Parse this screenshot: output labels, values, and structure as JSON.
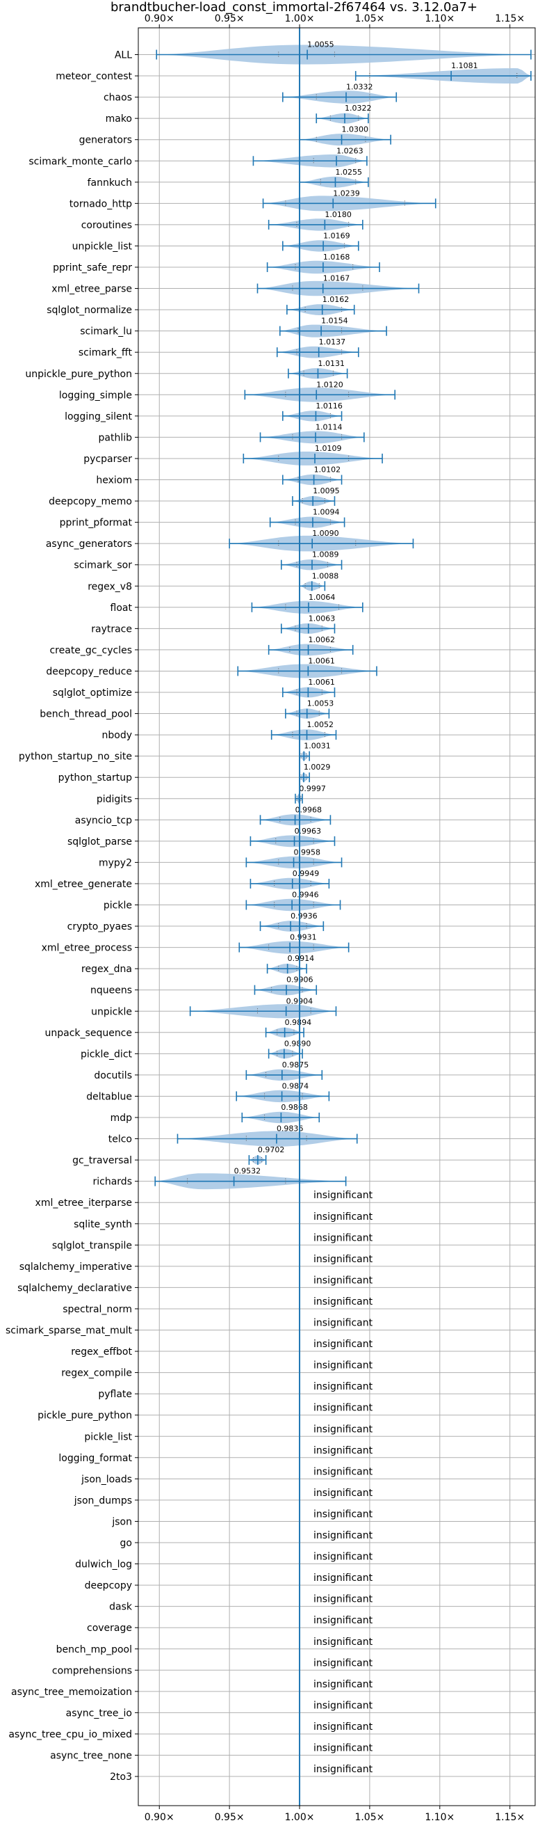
{
  "chart_data": {
    "type": "violin",
    "title": "brandtbucher-load_const_immortal-2f67464 vs. 3.12.0a7+",
    "xlim": [
      0.885,
      1.168
    ],
    "x_ticks": [
      0.9,
      0.95,
      1.0,
      1.05,
      1.1,
      1.15
    ],
    "x_tick_labels": [
      "0.90×",
      "0.95×",
      "1.00×",
      "1.05×",
      "1.10×",
      "1.15×"
    ],
    "reference_line": 1.0,
    "grid": true,
    "insignificant_label": "insignificant",
    "series": [
      {
        "name": "ALL",
        "value": 1.0055,
        "label": "1.0055",
        "min": 0.898,
        "max": 1.165,
        "q1": 0.985,
        "q3": 1.025,
        "peak": 0.9995
      },
      {
        "name": "meteor_contest",
        "value": 1.1081,
        "label": "1.1081",
        "min": 1.04,
        "max": 1.165,
        "q1": 1.05,
        "q3": 1.155,
        "peak": 1.155
      },
      {
        "name": "chaos",
        "value": 1.0332,
        "label": "1.0332",
        "min": 0.988,
        "max": 1.069,
        "q1": 1.012,
        "q3": 1.05,
        "peak": 1.035
      },
      {
        "name": "mako",
        "value": 1.0322,
        "label": "1.0322",
        "min": 1.012,
        "max": 1.049,
        "q1": 1.022,
        "q3": 1.042,
        "peak": 1.033
      },
      {
        "name": "generators",
        "value": 1.03,
        "label": "1.0300",
        "min": 1.0,
        "max": 1.065,
        "q1": 1.012,
        "q3": 1.047,
        "peak": 1.03
      },
      {
        "name": "scimark_monte_carlo",
        "value": 1.0263,
        "label": "1.0263",
        "min": 0.967,
        "max": 1.048,
        "q1": 1.01,
        "q3": 1.04,
        "peak": 1.025
      },
      {
        "name": "fannkuch",
        "value": 1.0255,
        "label": "1.0255",
        "min": 1.0,
        "max": 1.049,
        "q1": 1.015,
        "q3": 1.04,
        "peak": 1.025
      },
      {
        "name": "tornado_http",
        "value": 1.0239,
        "label": "1.0239",
        "min": 0.974,
        "max": 1.097,
        "q1": 0.99,
        "q3": 1.075,
        "peak": 1.015
      },
      {
        "name": "coroutines",
        "value": 1.018,
        "label": "1.0180",
        "min": 0.978,
        "max": 1.045,
        "q1": 0.998,
        "q3": 1.035,
        "peak": 1.015
      },
      {
        "name": "unpickle_list",
        "value": 1.0169,
        "label": "1.0169",
        "min": 0.988,
        "max": 1.042,
        "q1": 1.0,
        "q3": 1.032,
        "peak": 1.015
      },
      {
        "name": "pprint_safe_repr",
        "value": 1.0168,
        "label": "1.0168",
        "min": 0.977,
        "max": 1.057,
        "q1": 0.997,
        "q3": 1.038,
        "peak": 1.012
      },
      {
        "name": "xml_etree_parse",
        "value": 1.0167,
        "label": "1.0167",
        "min": 0.97,
        "max": 1.085,
        "q1": 0.995,
        "q3": 1.045,
        "peak": 1.01
      },
      {
        "name": "sqlglot_normalize",
        "value": 1.0162,
        "label": "1.0162",
        "min": 0.991,
        "max": 1.039,
        "q1": 1.004,
        "q3": 1.03,
        "peak": 1.015
      },
      {
        "name": "scimark_lu",
        "value": 1.0154,
        "label": "1.0154",
        "min": 0.986,
        "max": 1.062,
        "q1": 0.999,
        "q3": 1.03,
        "peak": 1.01
      },
      {
        "name": "scimark_fft",
        "value": 1.0137,
        "label": "1.0137",
        "min": 0.984,
        "max": 1.042,
        "q1": 0.998,
        "q3": 1.03,
        "peak": 1.01
      },
      {
        "name": "unpickle_pure_python",
        "value": 1.0131,
        "label": "1.0131",
        "min": 0.992,
        "max": 1.034,
        "q1": 1.003,
        "q3": 1.024,
        "peak": 1.012
      },
      {
        "name": "logging_simple",
        "value": 1.012,
        "label": "1.0120",
        "min": 0.961,
        "max": 1.068,
        "q1": 0.99,
        "q3": 1.035,
        "peak": 1.01
      },
      {
        "name": "logging_silent",
        "value": 1.0116,
        "label": "1.0116",
        "min": 0.988,
        "max": 1.03,
        "q1": 1.0,
        "q3": 1.022,
        "peak": 1.01
      },
      {
        "name": "pathlib",
        "value": 1.0114,
        "label": "1.0114",
        "min": 0.972,
        "max": 1.046,
        "q1": 0.995,
        "q3": 1.03,
        "peak": 1.012
      },
      {
        "name": "pycparser",
        "value": 1.0109,
        "label": "1.0109",
        "min": 0.96,
        "max": 1.059,
        "q1": 0.985,
        "q3": 1.035,
        "peak": 1.005
      },
      {
        "name": "hexiom",
        "value": 1.0102,
        "label": "1.0102",
        "min": 0.988,
        "max": 1.03,
        "q1": 0.999,
        "q3": 1.022,
        "peak": 1.01
      },
      {
        "name": "deepcopy_memo",
        "value": 1.0095,
        "label": "1.0095",
        "min": 0.995,
        "max": 1.025,
        "q1": 1.002,
        "q3": 1.018,
        "peak": 1.01
      },
      {
        "name": "pprint_pformat",
        "value": 1.0094,
        "label": "1.0094",
        "min": 0.979,
        "max": 1.032,
        "q1": 0.997,
        "q3": 1.022,
        "peak": 1.01
      },
      {
        "name": "async_generators",
        "value": 1.009,
        "label": "1.0090",
        "min": 0.95,
        "max": 1.081,
        "q1": 0.985,
        "q3": 1.04,
        "peak": 1.005
      },
      {
        "name": "scimark_sor",
        "value": 1.0089,
        "label": "1.0089",
        "min": 0.987,
        "max": 1.03,
        "q1": 0.998,
        "q3": 1.02,
        "peak": 1.008
      },
      {
        "name": "regex_v8",
        "value": 1.0088,
        "label": "1.0088",
        "min": 1.0,
        "max": 1.018,
        "q1": 1.004,
        "q3": 1.014,
        "peak": 1.008
      },
      {
        "name": "float",
        "value": 1.0064,
        "label": "1.0064",
        "min": 0.966,
        "max": 1.045,
        "q1": 0.99,
        "q3": 1.028,
        "peak": 1.005
      },
      {
        "name": "raytrace",
        "value": 1.0063,
        "label": "1.0063",
        "min": 0.987,
        "max": 1.025,
        "q1": 0.997,
        "q3": 1.016,
        "peak": 1.006
      },
      {
        "name": "create_gc_cycles",
        "value": 1.0062,
        "label": "1.0062",
        "min": 0.978,
        "max": 1.038,
        "q1": 0.993,
        "q3": 1.022,
        "peak": 1.005
      },
      {
        "name": "deepcopy_reduce",
        "value": 1.0061,
        "label": "1.0061",
        "min": 0.956,
        "max": 1.055,
        "q1": 0.985,
        "q3": 1.03,
        "peak": 1.003
      },
      {
        "name": "sqlglot_optimize",
        "value": 1.0061,
        "label": "1.0061",
        "min": 0.988,
        "max": 1.025,
        "q1": 0.998,
        "q3": 1.016,
        "peak": 1.006
      },
      {
        "name": "bench_thread_pool",
        "value": 1.0053,
        "label": "1.0053",
        "min": 0.99,
        "max": 1.021,
        "q1": 0.998,
        "q3": 1.014,
        "peak": 1.005
      },
      {
        "name": "nbody",
        "value": 1.0052,
        "label": "1.0052",
        "min": 0.98,
        "max": 1.026,
        "q1": 0.995,
        "q3": 1.018,
        "peak": 1.005
      },
      {
        "name": "python_startup_no_site",
        "value": 1.0031,
        "label": "1.0031",
        "min": 1.0,
        "max": 1.007,
        "q1": 1.001,
        "q3": 1.005,
        "peak": 1.003
      },
      {
        "name": "python_startup",
        "value": 1.0029,
        "label": "1.0029",
        "min": 1.0,
        "max": 1.007,
        "q1": 1.001,
        "q3": 1.005,
        "peak": 1.003
      },
      {
        "name": "pidigits",
        "value": 0.9997,
        "label": "0.9997",
        "min": 0.997,
        "max": 1.002,
        "q1": 0.998,
        "q3": 1.001,
        "peak": 0.9997
      },
      {
        "name": "asyncio_tcp",
        "value": 0.9968,
        "label": "0.9968",
        "min": 0.972,
        "max": 1.022,
        "q1": 0.986,
        "q3": 1.008,
        "peak": 0.996
      },
      {
        "name": "sqlglot_parse",
        "value": 0.9963,
        "label": "0.9963",
        "min": 0.965,
        "max": 1.025,
        "q1": 0.983,
        "q3": 1.01,
        "peak": 0.995
      },
      {
        "name": "mypy2",
        "value": 0.9958,
        "label": "0.9958",
        "min": 0.962,
        "max": 1.03,
        "q1": 0.985,
        "q3": 1.01,
        "peak": 0.997
      },
      {
        "name": "xml_etree_generate",
        "value": 0.9949,
        "label": "0.9949",
        "min": 0.965,
        "max": 1.021,
        "q1": 0.982,
        "q3": 1.008,
        "peak": 0.994
      },
      {
        "name": "pickle",
        "value": 0.9946,
        "label": "0.9946",
        "min": 0.962,
        "max": 1.029,
        "q1": 0.982,
        "q3": 1.01,
        "peak": 0.994
      },
      {
        "name": "crypto_pyaes",
        "value": 0.9936,
        "label": "0.9936",
        "min": 0.972,
        "max": 1.017,
        "q1": 0.985,
        "q3": 1.005,
        "peak": 0.994
      },
      {
        "name": "xml_etree_process",
        "value": 0.9931,
        "label": "0.9931",
        "min": 0.957,
        "max": 1.035,
        "q1": 0.978,
        "q3": 1.01,
        "peak": 0.993
      },
      {
        "name": "regex_dna",
        "value": 0.9914,
        "label": "0.9914",
        "min": 0.977,
        "max": 1.005,
        "q1": 0.985,
        "q3": 0.998,
        "peak": 0.991
      },
      {
        "name": "nqueens",
        "value": 0.9906,
        "label": "0.9906",
        "min": 0.968,
        "max": 1.012,
        "q1": 0.98,
        "q3": 1.002,
        "peak": 0.99
      },
      {
        "name": "unpickle",
        "value": 0.9904,
        "label": "0.9904",
        "min": 0.922,
        "max": 1.026,
        "q1": 0.97,
        "q3": 1.008,
        "peak": 0.992
      },
      {
        "name": "unpack_sequence",
        "value": 0.9894,
        "label": "0.9894",
        "min": 0.976,
        "max": 1.003,
        "q1": 0.984,
        "q3": 0.996,
        "peak": 0.989
      },
      {
        "name": "pickle_dict",
        "value": 0.989,
        "label": "0.9890",
        "min": 0.978,
        "max": 1.002,
        "q1": 0.984,
        "q3": 0.995,
        "peak": 0.989
      },
      {
        "name": "docutils",
        "value": 0.9875,
        "label": "0.9875",
        "min": 0.962,
        "max": 1.016,
        "q1": 0.976,
        "q3": 1.0,
        "peak": 0.987
      },
      {
        "name": "deltablue",
        "value": 0.9874,
        "label": "0.9874",
        "min": 0.955,
        "max": 1.021,
        "q1": 0.975,
        "q3": 1.002,
        "peak": 0.987
      },
      {
        "name": "mdp",
        "value": 0.9868,
        "label": "0.9868",
        "min": 0.959,
        "max": 1.014,
        "q1": 0.975,
        "q3": 1.0,
        "peak": 0.987
      },
      {
        "name": "telco",
        "value": 0.9836,
        "label": "0.9836",
        "min": 0.913,
        "max": 1.041,
        "q1": 0.962,
        "q3": 1.005,
        "peak": 0.985
      },
      {
        "name": "gc_traversal",
        "value": 0.9702,
        "label": "0.9702",
        "min": 0.964,
        "max": 0.976,
        "q1": 0.967,
        "q3": 0.973,
        "peak": 0.9702
      },
      {
        "name": "richards",
        "value": 0.9532,
        "label": "0.9532",
        "min": 0.897,
        "max": 1.033,
        "q1": 0.92,
        "q3": 0.99,
        "peak": 0.93
      },
      {
        "name": "xml_etree_iterparse",
        "insignificant": true
      },
      {
        "name": "sqlite_synth",
        "insignificant": true
      },
      {
        "name": "sqlglot_transpile",
        "insignificant": true
      },
      {
        "name": "sqlalchemy_imperative",
        "insignificant": true
      },
      {
        "name": "sqlalchemy_declarative",
        "insignificant": true
      },
      {
        "name": "spectral_norm",
        "insignificant": true
      },
      {
        "name": "scimark_sparse_mat_mult",
        "insignificant": true
      },
      {
        "name": "regex_effbot",
        "insignificant": true
      },
      {
        "name": "regex_compile",
        "insignificant": true
      },
      {
        "name": "pyflate",
        "insignificant": true
      },
      {
        "name": "pickle_pure_python",
        "insignificant": true
      },
      {
        "name": "pickle_list",
        "insignificant": true
      },
      {
        "name": "logging_format",
        "insignificant": true
      },
      {
        "name": "json_loads",
        "insignificant": true
      },
      {
        "name": "json_dumps",
        "insignificant": true
      },
      {
        "name": "json",
        "insignificant": true
      },
      {
        "name": "go",
        "insignificant": true
      },
      {
        "name": "dulwich_log",
        "insignificant": true
      },
      {
        "name": "deepcopy",
        "insignificant": true
      },
      {
        "name": "dask",
        "insignificant": true
      },
      {
        "name": "coverage",
        "insignificant": true
      },
      {
        "name": "bench_mp_pool",
        "insignificant": true
      },
      {
        "name": "comprehensions",
        "insignificant": true
      },
      {
        "name": "async_tree_memoization",
        "insignificant": true
      },
      {
        "name": "async_tree_io",
        "insignificant": true
      },
      {
        "name": "async_tree_cpu_io_mixed",
        "insignificant": true
      },
      {
        "name": "async_tree_none",
        "insignificant": true
      },
      {
        "name": "2to3",
        "insignificant": true
      }
    ]
  },
  "colors": {
    "violin_fill": "#a9c8e4",
    "line": "#1f77b4",
    "grid": "#b0b0b0",
    "frame": "#000000"
  }
}
